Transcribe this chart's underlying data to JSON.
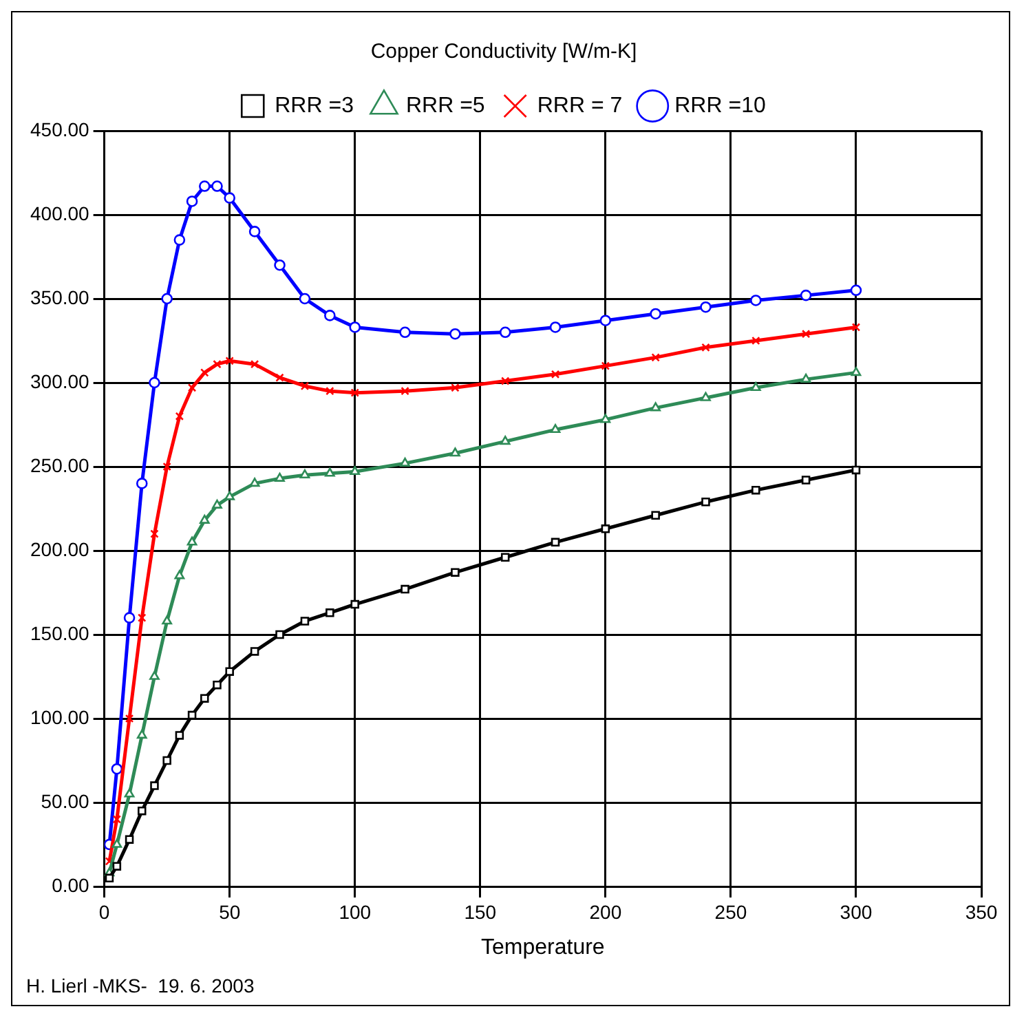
{
  "chart_data": {
    "type": "line",
    "title": "Copper Conductivity [W/m-K]",
    "xlabel": "Temperature",
    "annotations": [
      "H. Lierl -MKS-  19. 6. 2003"
    ],
    "x": [
      2,
      5,
      10,
      15,
      20,
      25,
      30,
      35,
      40,
      45,
      50,
      60,
      70,
      80,
      90,
      100,
      120,
      140,
      160,
      180,
      200,
      220,
      240,
      260,
      280,
      300
    ],
    "series": [
      {
        "name": "RRR =3",
        "color": "#000000",
        "marker": "square",
        "values": [
          5,
          12,
          28,
          45,
          60,
          75,
          90,
          102,
          112,
          120,
          128,
          140,
          150,
          158,
          163,
          168,
          177,
          187,
          196,
          205,
          213,
          221,
          229,
          236,
          242,
          248
        ]
      },
      {
        "name": "RRR =5",
        "color": "#2e8b57",
        "marker": "triangle",
        "values": [
          8,
          25,
          55,
          90,
          125,
          158,
          185,
          205,
          218,
          227,
          232,
          240,
          243,
          245,
          246,
          247,
          252,
          258,
          265,
          272,
          278,
          285,
          291,
          297,
          302,
          306
        ]
      },
      {
        "name": "RRR = 7",
        "color": "#ff0000",
        "marker": "cross",
        "values": [
          15,
          40,
          100,
          160,
          210,
          250,
          280,
          297,
          306,
          311,
          313,
          311,
          303,
          298,
          295,
          294,
          295,
          297,
          301,
          305,
          310,
          315,
          321,
          325,
          329,
          333
        ]
      },
      {
        "name": "RRR =10",
        "color": "#0000ff",
        "marker": "circle",
        "values": [
          25,
          70,
          160,
          240,
          300,
          350,
          385,
          408,
          417,
          417,
          410,
          390,
          370,
          350,
          340,
          333,
          330,
          329,
          330,
          333,
          337,
          341,
          345,
          349,
          352,
          355
        ]
      }
    ],
    "xlim": [
      0,
      350
    ],
    "xticks": [
      0,
      50,
      100,
      150,
      200,
      250,
      300,
      350
    ],
    "ylim": [
      0,
      450
    ],
    "yticks": [
      {
        "value": 0,
        "label": "0.00"
      },
      {
        "value": 50,
        "label": "50.00"
      },
      {
        "value": 100,
        "label": "100.00"
      },
      {
        "value": 150,
        "label": "150.00"
      },
      {
        "value": 200,
        "label": "200.00"
      },
      {
        "value": 250,
        "label": "250.00"
      },
      {
        "value": 300,
        "label": "300.00"
      },
      {
        "value": 350,
        "label": "350.00"
      },
      {
        "value": 400,
        "label": "400.00"
      },
      {
        "value": 450,
        "label": "450.00"
      }
    ],
    "grid": true,
    "legend": "top",
    "line_style": "solid"
  }
}
